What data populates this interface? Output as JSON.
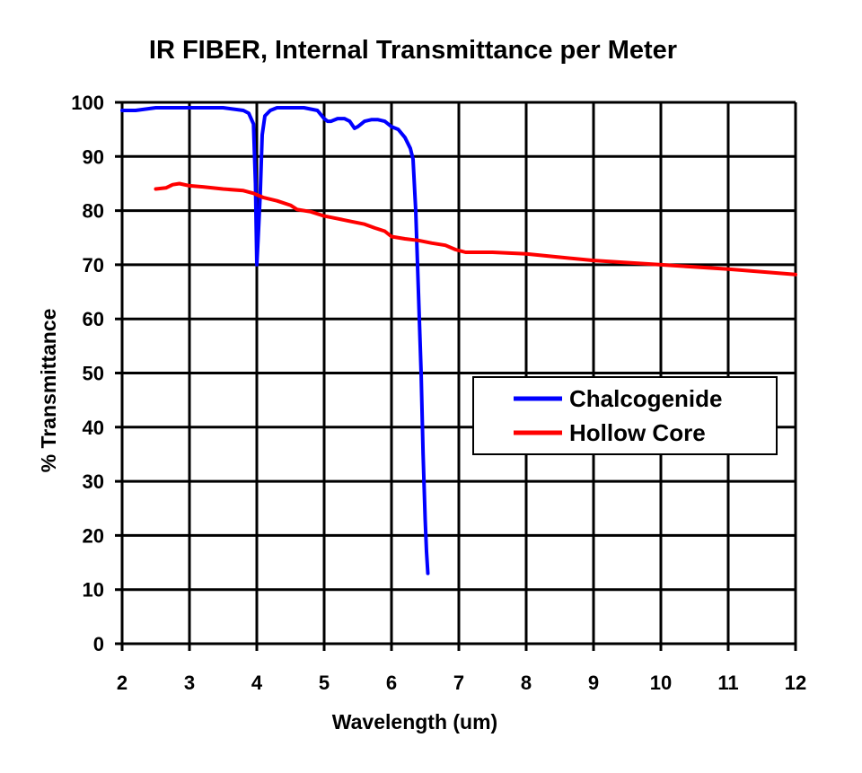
{
  "chart_data": {
    "type": "line",
    "title": "IR FIBER, Internal Transmittance per Meter",
    "xlabel": "Wavelength (um)",
    "ylabel": "% Transmittance",
    "xlim": [
      2,
      12
    ],
    "ylim": [
      0,
      100
    ],
    "xticks": [
      "2",
      "3",
      "4",
      "5",
      "6",
      "7",
      "8",
      "9",
      "10",
      "11",
      "12"
    ],
    "yticks": [
      "0",
      "10",
      "20",
      "30",
      "40",
      "50",
      "60",
      "70",
      "80",
      "90",
      "100"
    ],
    "grid": true,
    "legend_position": "center-right",
    "series": [
      {
        "name": "Chalcogenide",
        "color": "#0000ff",
        "x": [
          2.0,
          2.2,
          2.5,
          3.0,
          3.5,
          3.8,
          3.88,
          3.95,
          3.98,
          4.0,
          4.02,
          4.05,
          4.08,
          4.12,
          4.2,
          4.3,
          4.5,
          4.7,
          4.9,
          5.0,
          5.05,
          5.1,
          5.2,
          5.3,
          5.38,
          5.45,
          5.5,
          5.55,
          5.6,
          5.7,
          5.8,
          5.9,
          6.0,
          6.1,
          6.2,
          6.28,
          6.32,
          6.36,
          6.4,
          6.44,
          6.47,
          6.5,
          6.52,
          6.54
        ],
        "y": [
          98.5,
          98.5,
          99,
          99,
          99,
          98.5,
          98,
          96,
          85,
          70,
          75,
          83,
          94,
          97.5,
          98.5,
          99,
          99,
          99,
          98.5,
          97,
          96.5,
          96.5,
          97,
          97,
          96.5,
          95.2,
          95.5,
          96,
          96.5,
          96.8,
          96.8,
          96.5,
          95.5,
          95,
          93.5,
          91.5,
          89.5,
          80,
          65,
          50,
          35,
          23,
          17,
          13
        ]
      },
      {
        "name": "Hollow Core",
        "color": "#ff0000",
        "x": [
          2.5,
          2.65,
          2.75,
          2.85,
          3.0,
          3.2,
          3.5,
          3.8,
          3.95,
          4.1,
          4.3,
          4.5,
          4.6,
          4.8,
          5.0,
          5.2,
          5.4,
          5.6,
          5.75,
          5.9,
          6.0,
          6.2,
          6.4,
          6.6,
          6.8,
          6.95,
          7.1,
          7.5,
          8.0,
          8.5,
          9.0,
          10.0,
          11.0,
          12.0
        ],
        "y": [
          84,
          84.2,
          84.8,
          85,
          84.6,
          84.4,
          84,
          83.7,
          83.2,
          82.4,
          81.8,
          81,
          80.2,
          79.8,
          79,
          78.5,
          78,
          77.5,
          76.8,
          76.2,
          75.2,
          74.8,
          74.5,
          74,
          73.6,
          72.8,
          72.3,
          72.3,
          72,
          71.4,
          70.8,
          70,
          69.2,
          68.2
        ]
      }
    ]
  }
}
